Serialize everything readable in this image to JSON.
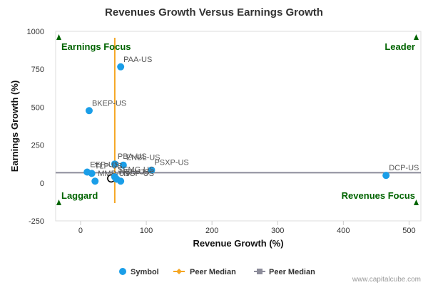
{
  "chart_data": {
    "type": "scatter",
    "title": "Revenues Growth Versus Earnings Growth",
    "xlabel": "Revenue Growth (%)",
    "ylabel": "Earnings Growth (%)",
    "xlim": [
      -38,
      518
    ],
    "ylim": [
      -250,
      1000
    ],
    "x_ticks": [
      0,
      100,
      200,
      300,
      400,
      500
    ],
    "y_ticks": [
      -250,
      0,
      250,
      500,
      750,
      1000
    ],
    "grid": false,
    "legend_position": "bottom",
    "colors": {
      "symbol": "#1a9ee8",
      "peer_median_x": "#f5a623",
      "peer_median_y": "#8c8c9a",
      "quadrant_text": "#006400",
      "marker": "#006400"
    },
    "series": [
      {
        "name": "Symbol",
        "points": [
          {
            "label": "PAA-US",
            "x": 61,
            "y": 766
          },
          {
            "label": "BKEP-US",
            "x": 13,
            "y": 477
          },
          {
            "label": "PBA-US",
            "x": 52,
            "y": 125
          },
          {
            "label": "ENBL-US",
            "x": 65,
            "y": 118
          },
          {
            "label": "PSXP-US",
            "x": 108,
            "y": 85
          },
          {
            "label": "EEP-US",
            "x": 10,
            "y": 72
          },
          {
            "label": "TLP-US",
            "x": 17,
            "y": 63
          },
          {
            "label": "MMP-US",
            "x": 22,
            "y": 12
          },
          {
            "label": "SEMG-US",
            "x": 52,
            "y": 40
          },
          {
            "label": "NSH-US",
            "x": 55,
            "y": 25
          },
          {
            "label": "NGP-US",
            "x": 61,
            "y": 12
          },
          {
            "label": "DCP-US",
            "x": 465,
            "y": 50
          }
        ]
      },
      {
        "name": "Peer Median",
        "type": "vertical_line",
        "x": 52
      },
      {
        "name": "Peer Median",
        "type": "horizontal_line",
        "y": 68
      }
    ],
    "quadrants": {
      "top_left": "Earnings Focus",
      "top_right": "Leader",
      "bottom_left": "Laggard",
      "bottom_right": "Revenues Focus"
    }
  },
  "footer": {
    "credit": "www.capitalcube.com"
  }
}
